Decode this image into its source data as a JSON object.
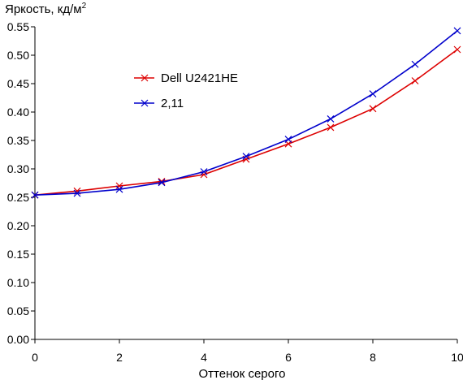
{
  "chart_data": {
    "type": "line",
    "title": "",
    "ylabel": "Яркость, кд/м",
    "ylabel_sup": "2",
    "xlabel": "Оттенок серого",
    "xlim": [
      0,
      10
    ],
    "ylim": [
      0,
      0.55
    ],
    "x_ticks": [
      0,
      2,
      4,
      6,
      8,
      10
    ],
    "x_tick_labels": [
      "0",
      "2",
      "4",
      "6",
      "8",
      "10"
    ],
    "y_ticks": [
      0,
      0.05,
      0.1,
      0.15,
      0.2,
      0.25,
      0.3,
      0.35,
      0.4,
      0.45,
      0.5,
      0.55
    ],
    "y_tick_labels": [
      "0.00",
      "0.05",
      "0.10",
      "0.15",
      "0.20",
      "0.25",
      "0.30",
      "0.35",
      "0.40",
      "0.45",
      "0.50",
      "0.55"
    ],
    "grid": false,
    "legend_position": "upper-left-center",
    "x": [
      0,
      1,
      2,
      3,
      4,
      5,
      6,
      7,
      8,
      9,
      10
    ],
    "series": [
      {
        "name": "Dell U2421HE",
        "color": "#dd0000",
        "marker": "x",
        "values": [
          0.254,
          0.261,
          0.27,
          0.278,
          0.29,
          0.317,
          0.344,
          0.373,
          0.406,
          0.455,
          0.51
        ]
      },
      {
        "name": "2,11",
        "color": "#0000cc",
        "marker": "x",
        "values": [
          0.254,
          0.257,
          0.264,
          0.276,
          0.295,
          0.322,
          0.352,
          0.388,
          0.432,
          0.484,
          0.543
        ]
      }
    ]
  }
}
